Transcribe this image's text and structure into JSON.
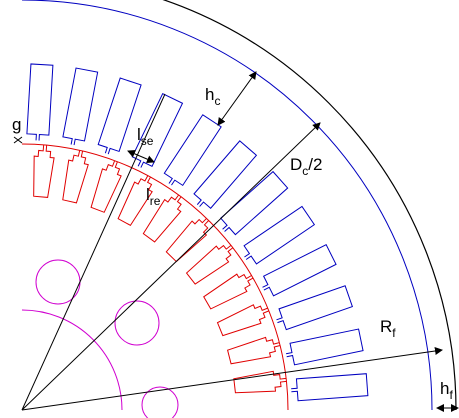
{
  "labels": {
    "g": "g",
    "hc": {
      "main": "h",
      "sub": "c"
    },
    "lse": {
      "main": "l",
      "sub": "se"
    },
    "dc": {
      "main": "D",
      "sub": "c",
      "rest": "/2"
    },
    "lre": {
      "main": "l",
      "sub": "re"
    },
    "rf": {
      "main": "R",
      "sub": "f"
    },
    "hf": {
      "main": "h",
      "sub": "f"
    }
  }
}
